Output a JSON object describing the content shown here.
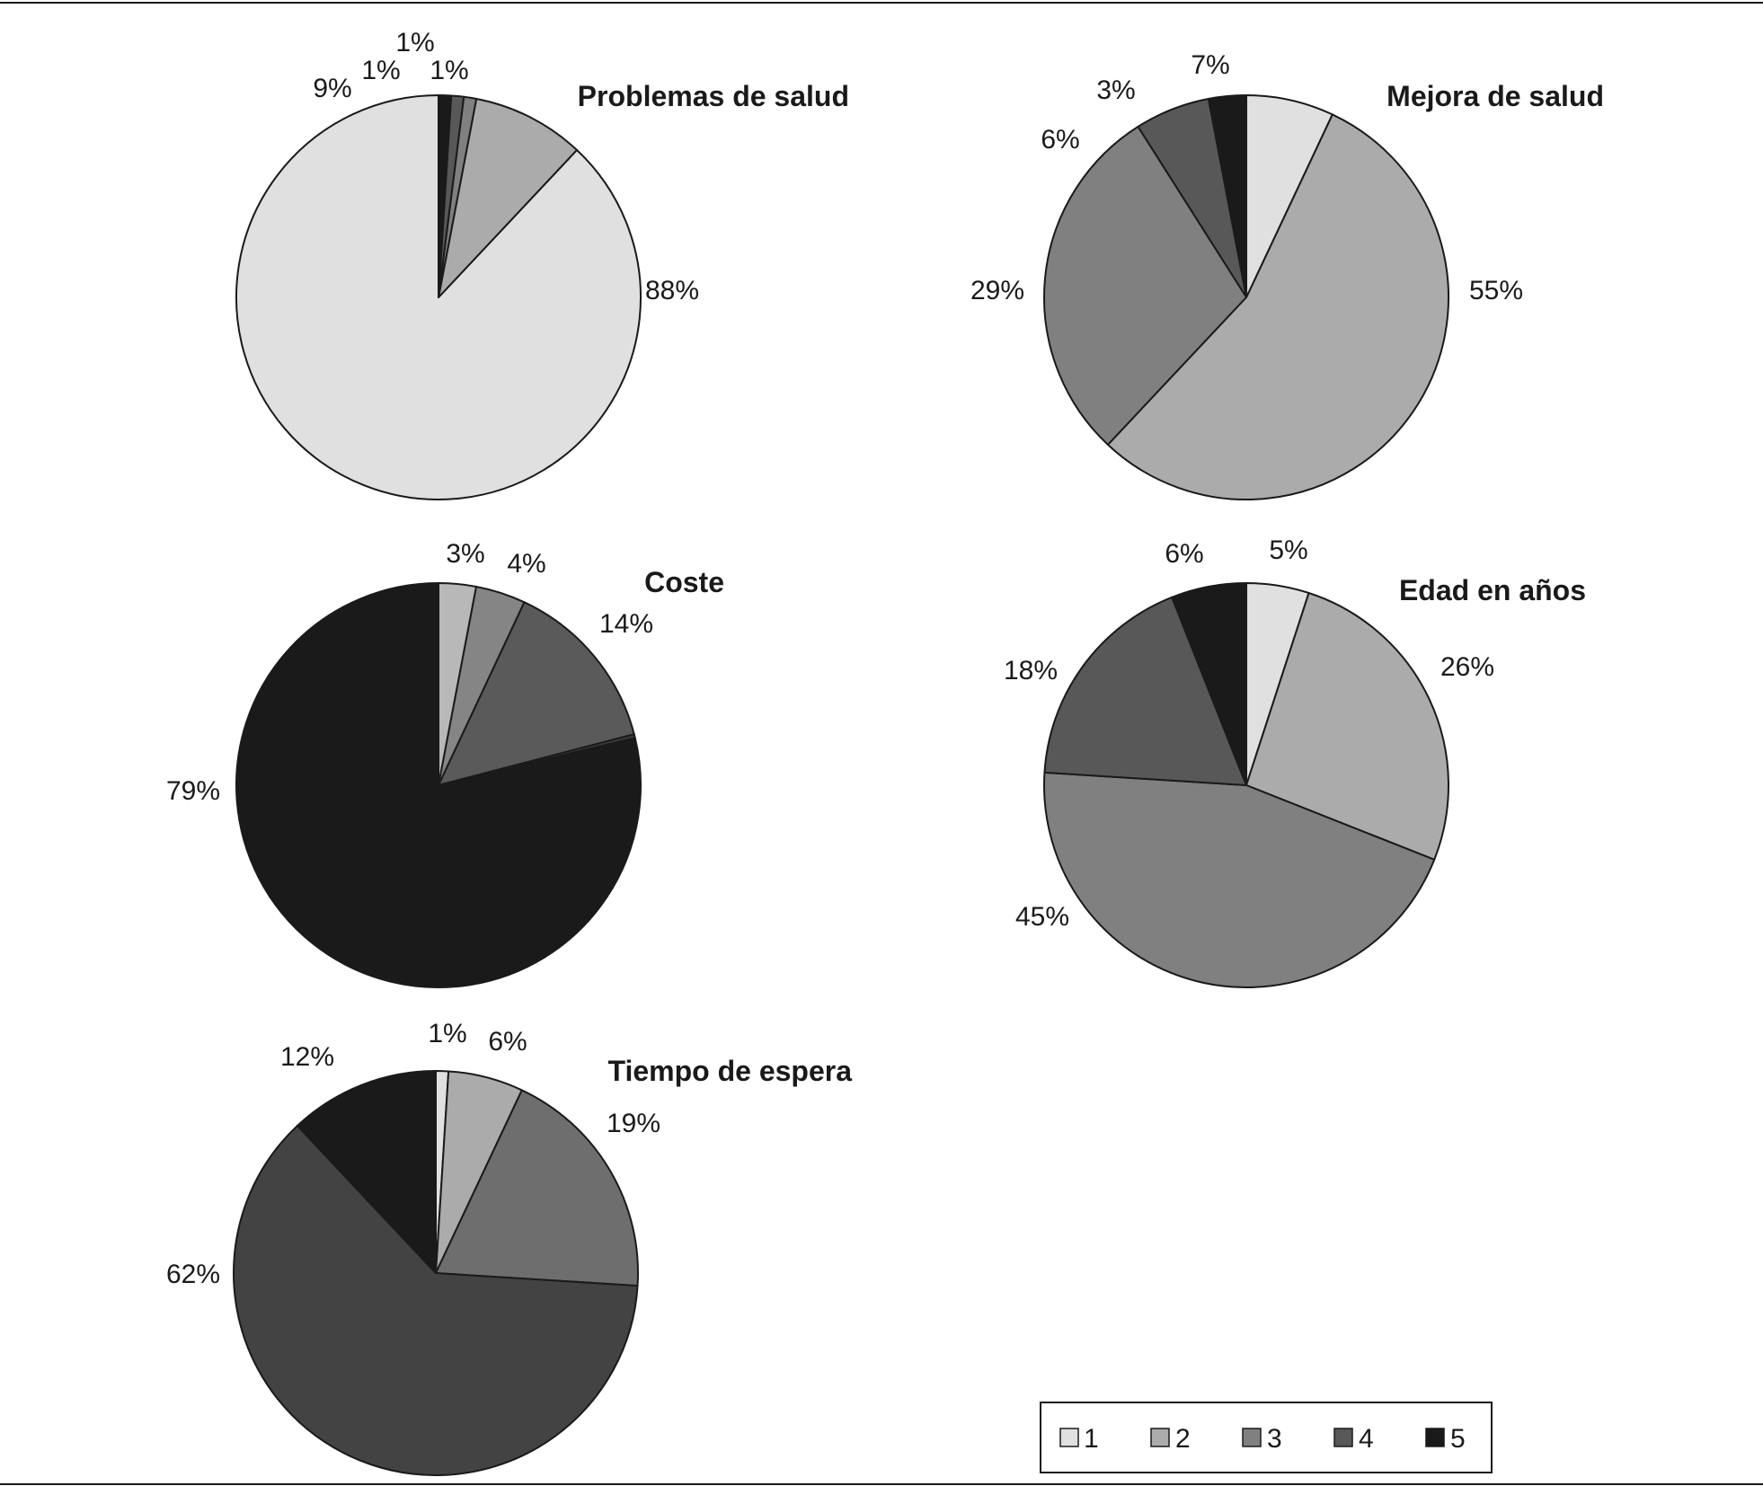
{
  "legend": {
    "items": [
      {
        "label": "1",
        "color": "#e0e0e0"
      },
      {
        "label": "2",
        "color": "#ababab"
      },
      {
        "label": "3",
        "color": "#808080"
      },
      {
        "label": "4",
        "color": "#585858"
      },
      {
        "label": "5",
        "color": "#1a1a1a"
      }
    ]
  },
  "chart_data": [
    {
      "type": "pie",
      "title": "Problemas de salud",
      "series": [
        {
          "name": "1",
          "value": 88,
          "label": "88%",
          "color": "#e0e0e0"
        },
        {
          "name": "2",
          "value": 9,
          "label": "9%",
          "color": "#ababab"
        },
        {
          "name": "3",
          "value": 1,
          "label": "1%",
          "color": "#808080"
        },
        {
          "name": "4",
          "value": 1,
          "label": "1%",
          "color": "#585858"
        },
        {
          "name": "5",
          "value": 1,
          "label": "1%",
          "color": "#1a1a1a"
        }
      ]
    },
    {
      "type": "pie",
      "title": "Mejora de salud",
      "series": [
        {
          "name": "1",
          "value": 7,
          "label": "7%",
          "color": "#e0e0e0"
        },
        {
          "name": "2",
          "value": 55,
          "label": "55%",
          "color": "#ababab"
        },
        {
          "name": "3",
          "value": 29,
          "label": "29%",
          "color": "#808080"
        },
        {
          "name": "4",
          "value": 6,
          "label": "6%",
          "color": "#585858"
        },
        {
          "name": "5",
          "value": 3,
          "label": "3%",
          "color": "#1a1a1a"
        }
      ]
    },
    {
      "type": "pie",
      "title": "Coste",
      "series": [
        {
          "name": "1",
          "value": 3,
          "label": "3%",
          "color": "#b8b8b8"
        },
        {
          "name": "2",
          "value": 4,
          "label": "4%",
          "color": "#858585"
        },
        {
          "name": "3",
          "value": 14,
          "label": "14%",
          "color": "#5a5a5a"
        },
        {
          "name": "4",
          "value": 0.3,
          "label": "",
          "color": "#3a3a3a"
        },
        {
          "name": "5",
          "value": 79,
          "label": "79%",
          "color": "#1a1a1a"
        }
      ]
    },
    {
      "type": "pie",
      "title": "Edad en años",
      "series": [
        {
          "name": "1",
          "value": 5,
          "label": "5%",
          "color": "#e0e0e0"
        },
        {
          "name": "2",
          "value": 26,
          "label": "26%",
          "color": "#ababab"
        },
        {
          "name": "3",
          "value": 45,
          "label": "45%",
          "color": "#808080"
        },
        {
          "name": "4",
          "value": 18,
          "label": "18%",
          "color": "#585858"
        },
        {
          "name": "5",
          "value": 6,
          "label": "6%",
          "color": "#1a1a1a"
        }
      ]
    },
    {
      "type": "pie",
      "title": "Tiempo de espera",
      "series": [
        {
          "name": "1",
          "value": 1,
          "label": "1%",
          "color": "#e0e0e0"
        },
        {
          "name": "2",
          "value": 6,
          "label": "6%",
          "color": "#ababab"
        },
        {
          "name": "3",
          "value": 19,
          "label": "19%",
          "color": "#6e6e6e"
        },
        {
          "name": "4",
          "value": 62,
          "label": "62%",
          "color": "#434343"
        },
        {
          "name": "5",
          "value": 12,
          "label": "12%",
          "color": "#1a1a1a"
        }
      ]
    }
  ]
}
